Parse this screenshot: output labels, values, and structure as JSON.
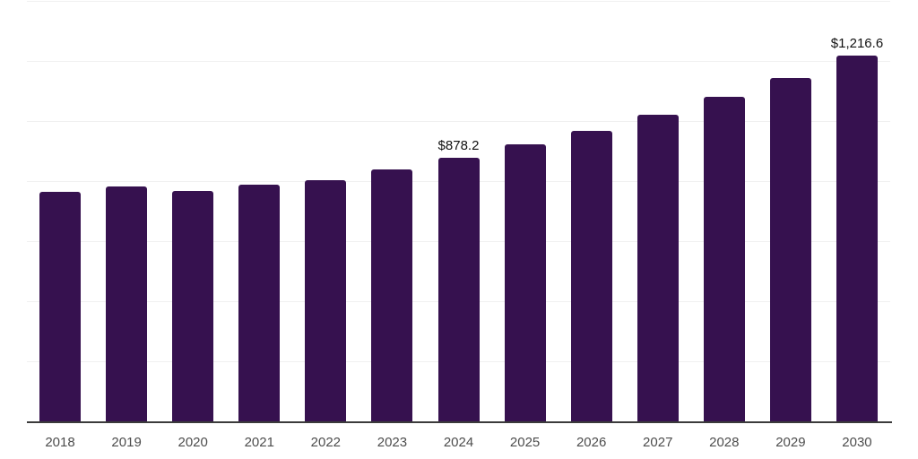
{
  "chart_data": {
    "type": "bar",
    "title": "",
    "xlabel": "",
    "ylabel": "",
    "categories": [
      "2018",
      "2019",
      "2020",
      "2021",
      "2022",
      "2023",
      "2024",
      "2025",
      "2026",
      "2027",
      "2028",
      "2029",
      "2030"
    ],
    "values": [
      765,
      783,
      768,
      789,
      804,
      840,
      878.2,
      923,
      968,
      1022,
      1081,
      1144,
      1216.6
    ],
    "ylim": [
      0,
      1400
    ],
    "gridline_step": 200,
    "grid": "horizontal",
    "legend_position": "none",
    "data_labels": [
      {
        "category": "2024",
        "text": "$878.2"
      },
      {
        "category": "2030",
        "text": "$1,216.6"
      }
    ],
    "colors": {
      "bar": "#36114F",
      "grid": "#f0f0f0",
      "axis": "#3b3b3b",
      "tick_label": "#4d4d4d",
      "data_label": "#111111",
      "background": "#ffffff"
    }
  }
}
